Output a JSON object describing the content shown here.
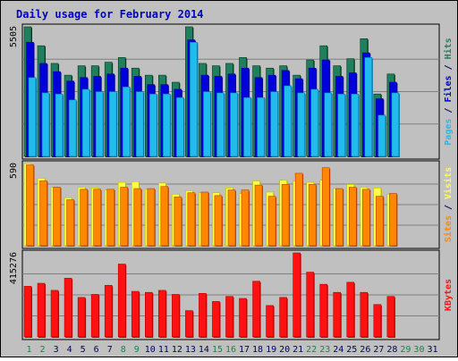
{
  "chart_data": {
    "type": "bar",
    "title": "Daily usage for February 2014",
    "x": [
      "1",
      "2",
      "3",
      "4",
      "5",
      "6",
      "7",
      "8",
      "9",
      "10",
      "11",
      "12",
      "13",
      "14",
      "15",
      "16",
      "17",
      "18",
      "19",
      "20",
      "21",
      "22",
      "23",
      "24",
      "25",
      "26",
      "27",
      "28",
      "29",
      "30",
      "31"
    ],
    "weekend_days": [
      "1",
      "2",
      "8",
      "9",
      "15",
      "16",
      "22",
      "23",
      "29",
      "30"
    ],
    "colors": {
      "hits": "#1f7f5f",
      "files": "#0000dd",
      "pages": "#22bbee",
      "visits": "#ffff44",
      "sites": "#ff8800",
      "kbytes": "#ff1111",
      "plot_bg": "#c0c0c0",
      "frame_bg": "#c0c0c0",
      "title": "#0000cc",
      "weekend_label": "#11884c",
      "weekday_label": "#000066"
    },
    "panels": [
      {
        "id": "pages-files-hits",
        "ymax_label": "5505",
        "ymax": 5505,
        "y_title_parts": [
          {
            "text": "Pages",
            "color": "#22bbee"
          },
          {
            "text": " / ",
            "color": "#000066"
          },
          {
            "text": "Files",
            "color": "#0000dd"
          },
          {
            "text": " / ",
            "color": "#000066"
          },
          {
            "text": "Hits",
            "color": "#1f7f5f"
          }
        ],
        "series": [
          {
            "key": "hits",
            "values": [
              5505,
              4700,
              3950,
              3450,
              3850,
              3850,
              4000,
              4200,
              3750,
              3450,
              3450,
              3150,
              5505,
              3950,
              3850,
              3950,
              4200,
              3850,
              3750,
              3850,
              3450,
              4100,
              4700,
              3850,
              4150,
              5000,
              2650,
              3500,
              null,
              null,
              null
            ]
          },
          {
            "key": "files",
            "values": [
              4850,
              3950,
              3600,
              3200,
              3350,
              3400,
              3500,
              3750,
              3400,
              3050,
              3050,
              2850,
              4950,
              3450,
              3400,
              3500,
              3750,
              3350,
              3450,
              3650,
              3300,
              3750,
              4100,
              3400,
              3550,
              4400,
              2450,
              3150,
              null,
              null,
              null
            ]
          },
          {
            "key": "pages",
            "values": [
              3350,
              2700,
              2650,
              2400,
              2850,
              2750,
              2750,
              2950,
              2750,
              2650,
              2650,
              2500,
              4850,
              2750,
              2700,
              2700,
              2500,
              2500,
              2750,
              3000,
              2700,
              2850,
              2700,
              2650,
              2650,
              4200,
              1750,
              2700,
              null,
              null,
              null
            ]
          }
        ]
      },
      {
        "id": "sites-visits",
        "ymax_label": "590",
        "ymax": 590,
        "y_title_parts": [
          {
            "text": "Sites",
            "color": "#ff8800"
          },
          {
            "text": " / ",
            "color": "#000066"
          },
          {
            "text": "Visits",
            "color": "#ffff44"
          }
        ],
        "series": [
          {
            "key": "visits",
            "values": [
              590,
              485,
              420,
              345,
              420,
              415,
              400,
              455,
              460,
              405,
              450,
              370,
              395,
              380,
              380,
              415,
              375,
              465,
              385,
              470,
              465,
              455,
              470,
              410,
              440,
              420,
              415,
              370,
              null,
              null,
              null
            ]
          },
          {
            "key": "sites",
            "values": [
              580,
              465,
              420,
              330,
              405,
              405,
              405,
              420,
              410,
              410,
              425,
              350,
              380,
              385,
              360,
              400,
              400,
              435,
              355,
              440,
              520,
              440,
              560,
              410,
              420,
              405,
              355,
              375,
              null,
              null,
              null
            ]
          }
        ]
      },
      {
        "id": "kbytes",
        "ymax_label": "415276",
        "ymax": 415276,
        "y_title_parts": [
          {
            "text": "KBytes",
            "color": "#ff1111"
          }
        ],
        "series": [
          {
            "key": "kbytes",
            "values": [
              250000,
              265000,
              230000,
              290000,
              195000,
              210000,
              255000,
              360000,
              225000,
              220000,
              230000,
              210000,
              130000,
              215000,
              175000,
              200000,
              190000,
              275000,
              155000,
              195000,
              415276,
              320000,
              260000,
              220000,
              270000,
              220000,
              160000,
              200000,
              null,
              null,
              null
            ]
          }
        ]
      }
    ]
  }
}
